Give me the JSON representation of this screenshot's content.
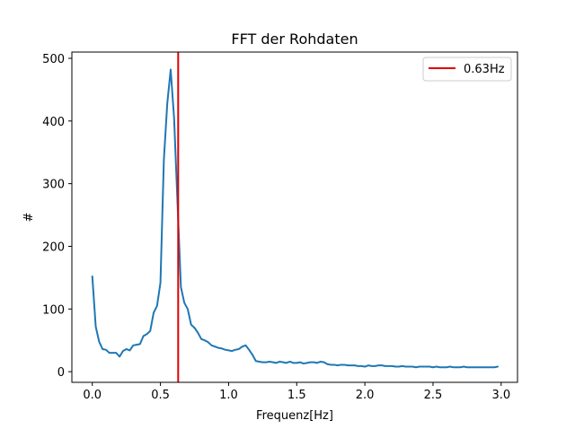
{
  "chart_data": {
    "type": "line",
    "title": "FFT der Rohdaten",
    "xlabel": "Frequenz[Hz]",
    "ylabel": "#",
    "xlim": [
      -0.15,
      3.12
    ],
    "ylim": [
      -17,
      510
    ],
    "xticks": [
      0.0,
      0.5,
      1.0,
      1.5,
      2.0,
      2.5,
      3.0
    ],
    "xtick_labels": [
      "0.0",
      "0.5",
      "1.0",
      "1.5",
      "2.0",
      "2.5",
      "3.0"
    ],
    "yticks": [
      0,
      100,
      200,
      300,
      400,
      500
    ],
    "ytick_labels": [
      "0",
      "100",
      "200",
      "300",
      "400",
      "500"
    ],
    "grid": false,
    "legend_position": "top-right",
    "series": [
      {
        "color": "#1f77b4",
        "x": [
          0.0,
          0.025,
          0.05,
          0.075,
          0.1,
          0.125,
          0.15,
          0.175,
          0.2,
          0.225,
          0.25,
          0.275,
          0.3,
          0.325,
          0.35,
          0.375,
          0.4,
          0.425,
          0.45,
          0.475,
          0.5,
          0.525,
          0.55,
          0.575,
          0.6,
          0.625,
          0.65,
          0.675,
          0.7,
          0.725,
          0.75,
          0.775,
          0.8,
          0.825,
          0.85,
          0.875,
          0.9,
          0.925,
          0.95,
          0.975,
          1.0,
          1.025,
          1.05,
          1.075,
          1.1,
          1.125,
          1.15,
          1.175,
          1.2,
          1.225,
          1.25,
          1.275,
          1.3,
          1.325,
          1.35,
          1.375,
          1.4,
          1.425,
          1.45,
          1.475,
          1.5,
          1.525,
          1.55,
          1.575,
          1.6,
          1.625,
          1.65,
          1.675,
          1.7,
          1.725,
          1.75,
          1.775,
          1.8,
          1.825,
          1.85,
          1.875,
          1.9,
          1.925,
          1.95,
          1.975,
          2.0,
          2.025,
          2.05,
          2.075,
          2.1,
          2.125,
          2.15,
          2.175,
          2.2,
          2.225,
          2.25,
          2.275,
          2.3,
          2.325,
          2.35,
          2.375,
          2.4,
          2.425,
          2.45,
          2.475,
          2.5,
          2.525,
          2.55,
          2.575,
          2.6,
          2.625,
          2.65,
          2.675,
          2.7,
          2.725,
          2.75,
          2.775,
          2.8,
          2.825,
          2.85,
          2.875,
          2.9,
          2.925,
          2.95,
          2.975
        ],
        "values": [
          152,
          72,
          48,
          36,
          35,
          30,
          30,
          30,
          24,
          33,
          36,
          34,
          42,
          43,
          44,
          57,
          60,
          65,
          94,
          105,
          142,
          338,
          428,
          482,
          405,
          270,
          135,
          110,
          100,
          75,
          70,
          62,
          52,
          50,
          47,
          42,
          40,
          38,
          37,
          35,
          34,
          33,
          35,
          36,
          40,
          42,
          35,
          27,
          17,
          16,
          15,
          15,
          16,
          15,
          14,
          16,
          15,
          14,
          16,
          14,
          14,
          15,
          13,
          14,
          15,
          15,
          14,
          16,
          15,
          12,
          11,
          11,
          10,
          11,
          11,
          10,
          10,
          10,
          9,
          9,
          8,
          10,
          9,
          9,
          10,
          10,
          9,
          9,
          9,
          8,
          8,
          9,
          8,
          8,
          8,
          7,
          8,
          8,
          8,
          8,
          7,
          8,
          7,
          7,
          7,
          8,
          7,
          7,
          7,
          8,
          7,
          7,
          7,
          7,
          7,
          7,
          7,
          7,
          7,
          8
        ]
      }
    ],
    "vlines": [
      {
        "name": "0.63Hz",
        "x": 0.63,
        "color": "#e00000"
      }
    ]
  }
}
